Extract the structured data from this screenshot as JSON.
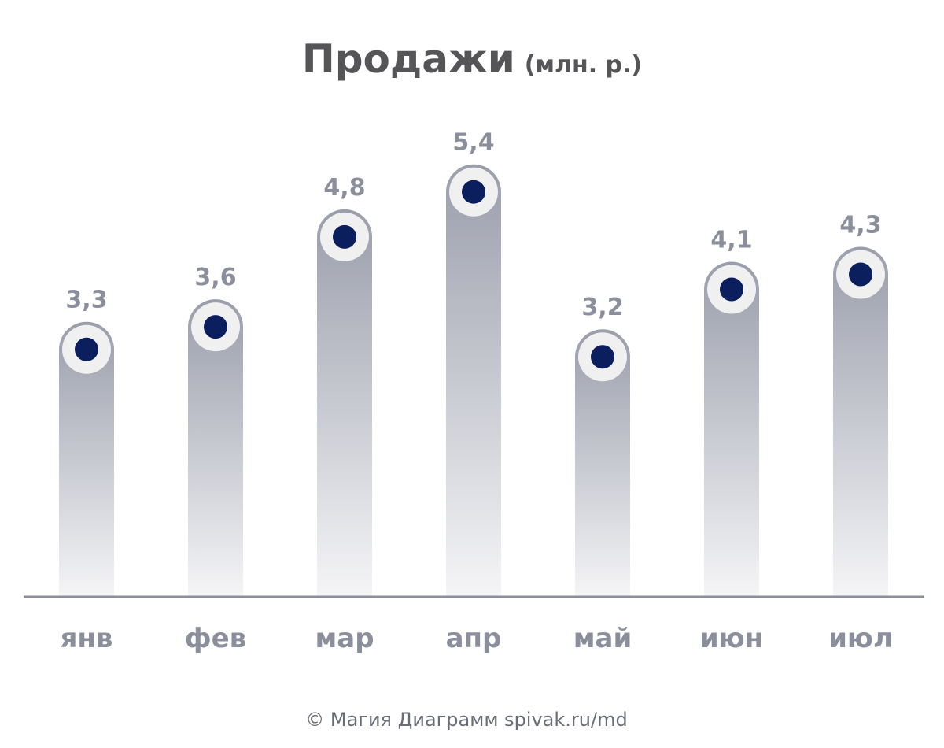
{
  "chart_data": {
    "type": "bar",
    "title": "Продажи",
    "title_unit": "(млн. р.)",
    "categories": [
      "янв",
      "фев",
      "мар",
      "апр",
      "май",
      "июн",
      "июл"
    ],
    "values": [
      3.3,
      3.6,
      4.8,
      5.4,
      3.2,
      4.1,
      4.3
    ],
    "value_labels": [
      "3,3",
      "3,6",
      "4,8",
      "5,4",
      "3,2",
      "4,1",
      "4,3"
    ],
    "ylim": [
      0,
      6
    ],
    "grid": false,
    "colors": {
      "bar_top": "#9a9eab",
      "bar_bottom": "#f5f5f7",
      "marker_ring": "#f0f0f1",
      "marker_dot": "#0b1f5e",
      "axis": "#8b8f9c",
      "labels": "#8b8f9c",
      "title": "#555558"
    }
  },
  "footer": {
    "credit": "© Магия Диаграмм spivak.ru/md"
  }
}
